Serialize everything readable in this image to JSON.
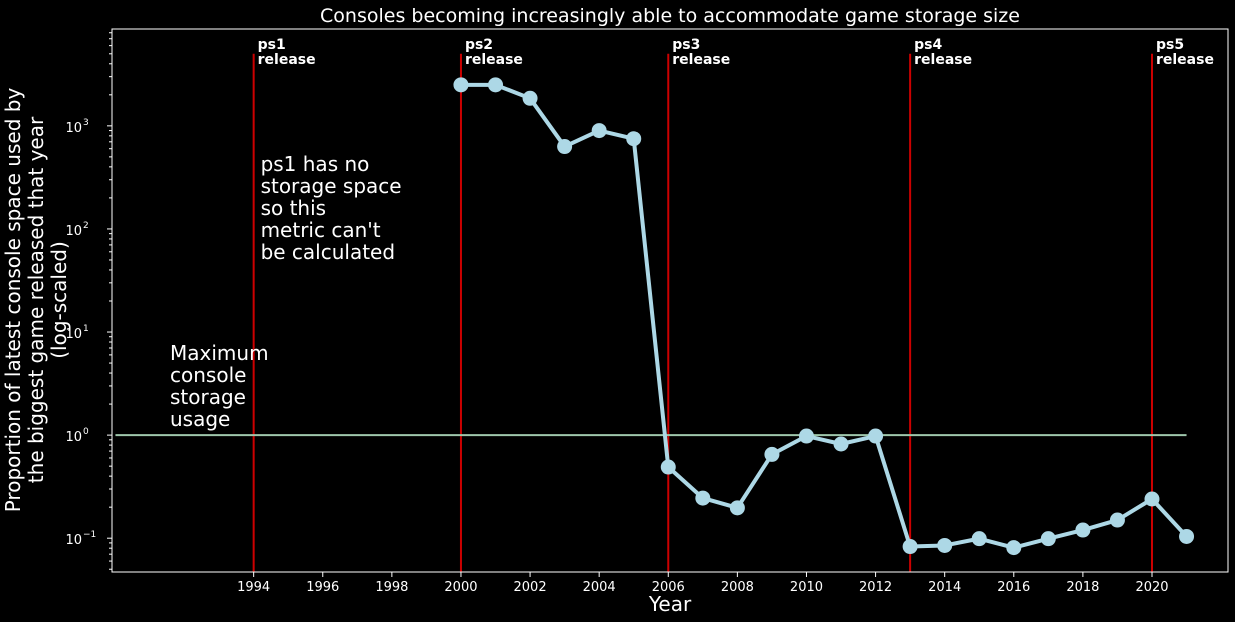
{
  "chart_data": {
    "type": "line",
    "title": "Consoles becoming increasingly able to accommodate game storage size",
    "xlabel": "Year",
    "ylabel": [
      "Proportion of latest console space used by",
      "the biggest game released that year",
      "(log-scaled)"
    ],
    "yscale": "log",
    "xlim": [
      1989.9,
      2022.2
    ],
    "ylim": [
      0.047,
      8700
    ],
    "x_ticks": [
      1994,
      1996,
      1998,
      2000,
      2002,
      2004,
      2006,
      2008,
      2010,
      2012,
      2014,
      2016,
      2018,
      2020
    ],
    "y_ticks": [
      {
        "value": 0.1,
        "base": "10",
        "exp": "−1"
      },
      {
        "value": 1,
        "base": "10",
        "exp": "0"
      },
      {
        "value": 10,
        "base": "10",
        "exp": "1"
      },
      {
        "value": 100,
        "base": "10",
        "exp": "2"
      },
      {
        "value": 1000,
        "base": "10",
        "exp": "3"
      }
    ],
    "grid": false,
    "series": [
      {
        "color": "#add8e6",
        "x": [
          2000,
          2001,
          2002,
          2003,
          2004,
          2005,
          2006,
          2007,
          2008,
          2009,
          2010,
          2011,
          2012,
          2013,
          2014,
          2015,
          2016,
          2017,
          2018,
          2019,
          2020,
          2021
        ],
        "y": [
          2500,
          2500,
          1850,
          630,
          900,
          750,
          0.49,
          0.245,
          0.197,
          0.65,
          0.98,
          0.82,
          0.98,
          0.083,
          0.085,
          0.099,
          0.081,
          0.099,
          0.12,
          0.15,
          0.24,
          0.104
        ]
      }
    ],
    "reference_line": {
      "y": 1,
      "x_start": 1990,
      "x_end": 2021,
      "color": "#9fc7ac",
      "label": [
        "Maximum",
        "console",
        "storage",
        "usage"
      ]
    },
    "release_lines": [
      {
        "x": 1994,
        "label": [
          "ps1",
          "release"
        ]
      },
      {
        "x": 2000,
        "label": [
          "ps2",
          "release"
        ]
      },
      {
        "x": 2006,
        "label": [
          "ps3",
          "release"
        ]
      },
      {
        "x": 2013,
        "label": [
          "ps4",
          "release"
        ]
      },
      {
        "x": 2020,
        "label": [
          "ps5",
          "release"
        ]
      }
    ],
    "release_line_color": "#cc0000",
    "annotations": [
      {
        "x": 1994.2,
        "y": 300,
        "lines": [
          "ps1 has no",
          "storage space",
          "so this",
          "metric can't",
          "be calculated"
        ]
      }
    ]
  }
}
